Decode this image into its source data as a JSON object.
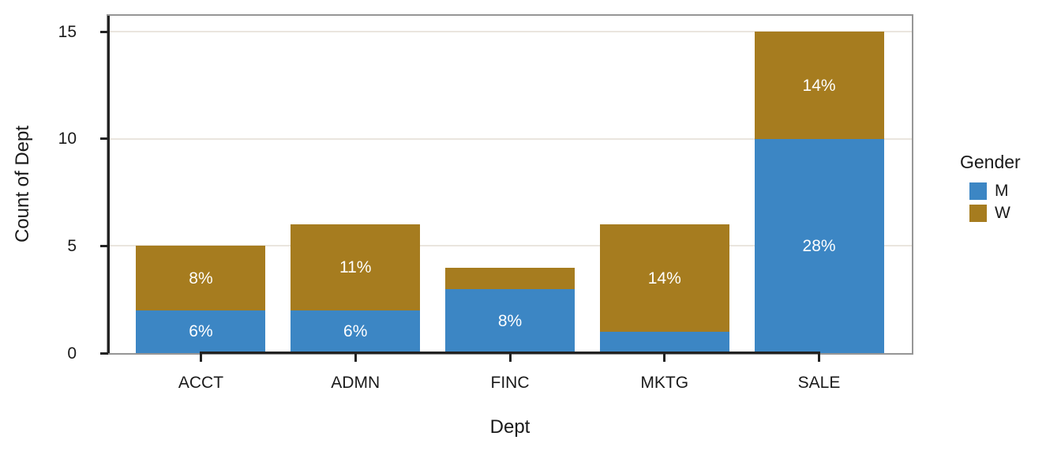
{
  "chart_data": {
    "type": "bar",
    "stacked": true,
    "title": "",
    "xlabel": "Dept",
    "ylabel": "Count of Dept",
    "categories": [
      "ACCT",
      "ADMN",
      "FINC",
      "MKTG",
      "SALE"
    ],
    "series": [
      {
        "name": "M",
        "color": "#3C86C4",
        "values": [
          2,
          2,
          3,
          1,
          10
        ],
        "bar_labels": [
          "6%",
          "6%",
          "8%",
          "",
          "28%"
        ]
      },
      {
        "name": "W",
        "color": "#A67C1F",
        "values": [
          3,
          4,
          1,
          5,
          5
        ],
        "bar_labels": [
          "8%",
          "11%",
          "",
          "14%",
          "14%"
        ]
      }
    ],
    "totals": [
      5,
      6,
      4,
      6,
      15
    ],
    "y_ticks": [
      0,
      5,
      10,
      15
    ],
    "ylim": [
      0,
      15.75
    ],
    "gridlines_at": [
      5,
      10,
      15
    ],
    "legend": {
      "title": "Gender",
      "position": "right",
      "entries": [
        {
          "label": "M",
          "color": "#3C86C4"
        },
        {
          "label": "W",
          "color": "#A67C1F"
        }
      ]
    },
    "style": {
      "bar_label_color": "#ffffff",
      "grid_color": "#EAE5DE",
      "panel_border_color": "#969696",
      "axis_color": "#222222",
      "text_color": "#1a1a1a",
      "background": "#ffffff"
    }
  }
}
